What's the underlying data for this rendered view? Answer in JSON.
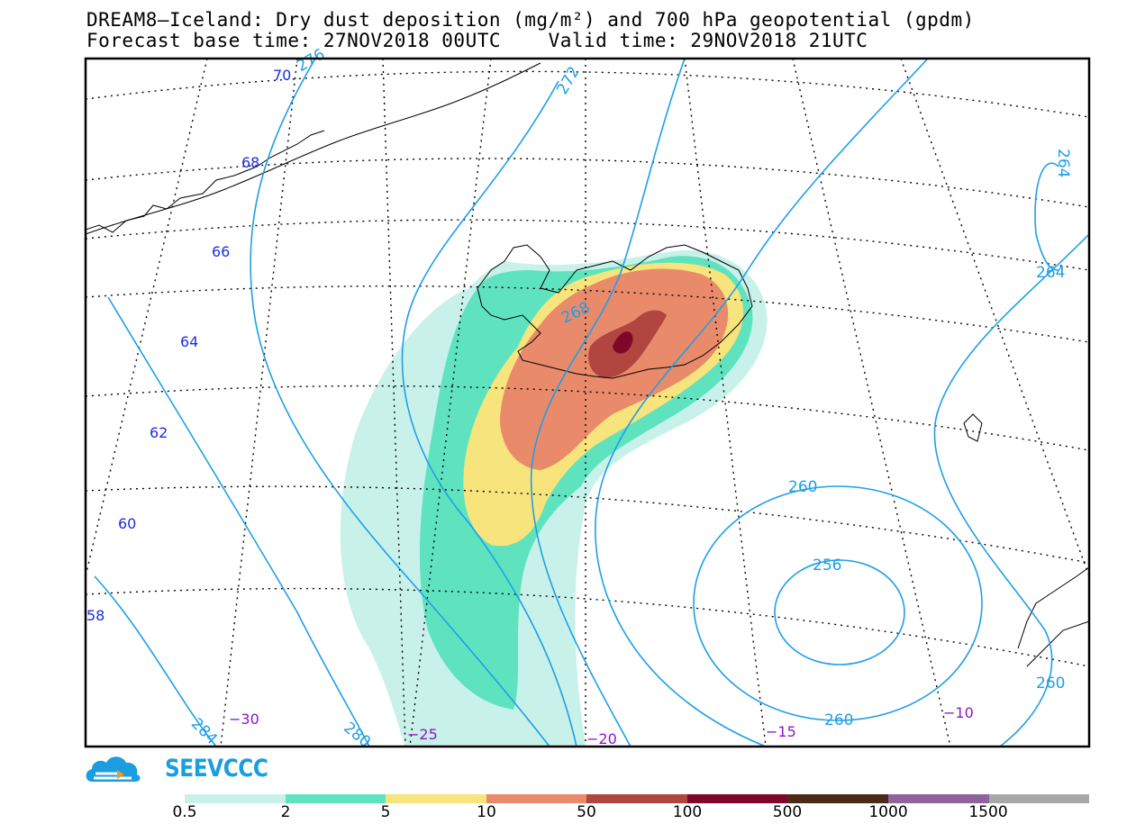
{
  "header": {
    "title_line1": "DREAM8—Iceland: Dry dust deposition (mg/m²) and 700 hPa geopotential (gpdm)",
    "title_line2": "Forecast base time: 27NOV2018 00UTC    Valid time: 29NOV2018 21UTC"
  },
  "map": {
    "lat_labels": [
      "70",
      "68",
      "66",
      "64",
      "62",
      "60",
      "58"
    ],
    "lon_labels": [
      "−30",
      "−25",
      "−20",
      "−15",
      "−10"
    ],
    "contour_labels": [
      "272",
      "268",
      "264",
      "264",
      "260",
      "256",
      "260",
      "260",
      "284",
      "280",
      "276"
    ],
    "colors": {
      "contour": "#1e9fe8",
      "lat_label": "#1c2fe0",
      "lon_label": "#8a18c9",
      "coast": "#000000"
    }
  },
  "legend": {
    "bins": [
      {
        "label": "0.5",
        "color": "#c8f1ea"
      },
      {
        "label": "2",
        "color": "#5fe3bf"
      },
      {
        "label": "5",
        "color": "#f8e47c"
      },
      {
        "label": "10",
        "color": "#e98a6a"
      },
      {
        "label": "50",
        "color": "#b0463f"
      },
      {
        "label": "100",
        "color": "#80072a"
      },
      {
        "label": "500",
        "color": "#4b2b18"
      },
      {
        "label": "1000",
        "color": "#92639b"
      },
      {
        "label": "1500",
        "color": "#a8a8a8"
      }
    ]
  },
  "logo": {
    "text": "SEEVCCC"
  }
}
